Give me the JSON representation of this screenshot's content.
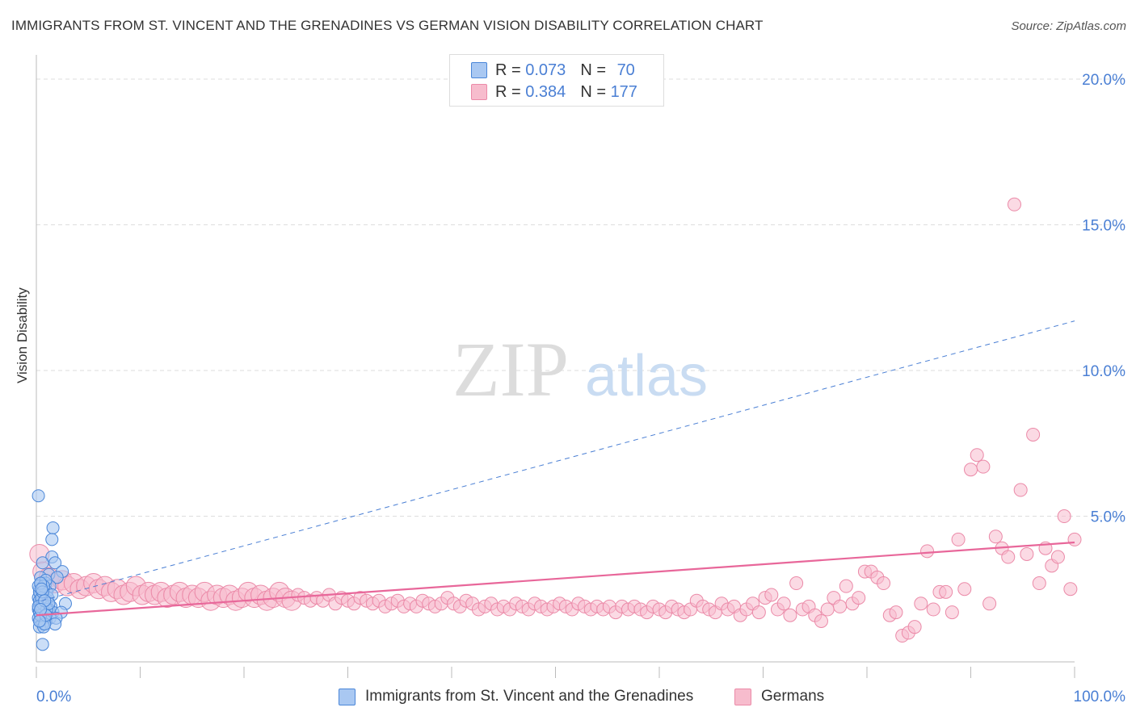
{
  "header": {
    "title": "IMMIGRANTS FROM ST. VINCENT AND THE GRENADINES VS GERMAN VISION DISABILITY CORRELATION CHART",
    "source": "Source: ZipAtlas.com"
  },
  "watermark": {
    "zip": "ZIP",
    "atlas": "atlas"
  },
  "legend_top": {
    "rows": [
      {
        "r_label": "R = ",
        "r_value": "0.073",
        "n_label": "N = ",
        "n_value": "70"
      },
      {
        "r_label": "R = ",
        "r_value": "0.384",
        "n_label": "N = ",
        "n_value": "177"
      }
    ]
  },
  "colors": {
    "blue_fill": "#a9c8f2",
    "blue_stroke": "#4a86d8",
    "blue_line": "#4a7fd4",
    "pink_fill": "#f7bccd",
    "pink_stroke": "#eb8aa8",
    "pink_line": "#e8679a",
    "tick_text": "#4a7fd4",
    "grid": "#dddddd"
  },
  "chart_data": {
    "type": "scatter",
    "title": "IMMIGRANTS FROM ST. VINCENT AND THE GRENADINES VS GERMAN VISION DISABILITY CORRELATION CHART",
    "xlabel": "",
    "ylabel": "Vision Disability",
    "xlim": [
      0,
      100
    ],
    "ylim": [
      0,
      20.5
    ],
    "x_tick_labels": [
      "0.0%",
      "100.0%"
    ],
    "y_ticks": [
      5,
      10,
      15,
      20
    ],
    "y_tick_labels": [
      "5.0%",
      "10.0%",
      "15.0%",
      "20.0%"
    ],
    "grid": true,
    "legend_position": "bottom",
    "series": [
      {
        "name": "Immigrants from St. Vincent and the Grenadines",
        "r": 0.073,
        "n": 70,
        "trend": {
          "x": [
            0.5,
            100
          ],
          "y": [
            2.1,
            11.7
          ],
          "style": "dashed"
        },
        "points": [
          [
            0.2,
            5.7
          ],
          [
            1.6,
            4.6
          ],
          [
            1.5,
            4.2
          ],
          [
            1.5,
            3.6
          ],
          [
            1.8,
            3.4
          ],
          [
            0.6,
            3.4
          ],
          [
            2.5,
            3.1
          ],
          [
            1.2,
            3.0
          ],
          [
            2.0,
            2.9
          ],
          [
            0.4,
            2.9
          ],
          [
            0.5,
            2.7
          ],
          [
            0.9,
            2.7
          ],
          [
            1.3,
            2.6
          ],
          [
            0.3,
            2.5
          ],
          [
            0.7,
            2.5
          ],
          [
            1.0,
            2.4
          ],
          [
            0.4,
            2.3
          ],
          [
            0.6,
            2.3
          ],
          [
            0.8,
            2.2
          ],
          [
            0.2,
            2.2
          ],
          [
            0.5,
            2.1
          ],
          [
            1.1,
            2.1
          ],
          [
            0.3,
            2.0
          ],
          [
            0.7,
            2.0
          ],
          [
            2.8,
            2.0
          ],
          [
            0.4,
            1.9
          ],
          [
            0.9,
            1.9
          ],
          [
            1.4,
            1.9
          ],
          [
            0.2,
            1.8
          ],
          [
            0.6,
            1.8
          ],
          [
            1.2,
            1.8
          ],
          [
            0.3,
            1.7
          ],
          [
            0.8,
            1.7
          ],
          [
            1.6,
            1.7
          ],
          [
            2.4,
            1.7
          ],
          [
            0.5,
            1.6
          ],
          [
            1.0,
            1.6
          ],
          [
            0.2,
            1.5
          ],
          [
            0.7,
            1.5
          ],
          [
            1.3,
            1.5
          ],
          [
            1.9,
            1.5
          ],
          [
            0.4,
            1.4
          ],
          [
            0.9,
            1.4
          ],
          [
            0.6,
            1.3
          ],
          [
            1.8,
            1.3
          ],
          [
            0.3,
            1.2
          ],
          [
            0.7,
            1.2
          ],
          [
            0.6,
            0.6
          ],
          [
            0.3,
            2.4
          ],
          [
            0.5,
            1.9
          ],
          [
            0.9,
            2.8
          ],
          [
            1.1,
            2.2
          ],
          [
            0.2,
            2.6
          ],
          [
            0.4,
            1.6
          ],
          [
            1.5,
            2.3
          ],
          [
            0.8,
            1.3
          ],
          [
            0.3,
            2.1
          ],
          [
            0.6,
            2.0
          ],
          [
            1.0,
            1.8
          ],
          [
            0.5,
            2.2
          ],
          [
            0.7,
            2.6
          ],
          [
            0.2,
            1.9
          ],
          [
            0.4,
            2.7
          ],
          [
            1.2,
            2.0
          ],
          [
            0.9,
            1.6
          ],
          [
            0.3,
            1.4
          ],
          [
            0.6,
            2.4
          ],
          [
            0.8,
            2.1
          ],
          [
            0.4,
            1.8
          ],
          [
            0.5,
            2.5
          ]
        ]
      },
      {
        "name": "Germans",
        "r": 0.384,
        "n": 177,
        "trend": {
          "x": [
            0,
            100
          ],
          "y": [
            1.6,
            4.1
          ],
          "style": "solid"
        },
        "points": [
          [
            0.3,
            3.7
          ],
          [
            0.6,
            3.1
          ],
          [
            1.2,
            2.9
          ],
          [
            1.8,
            2.7
          ],
          [
            2.5,
            2.8
          ],
          [
            3.0,
            2.6
          ],
          [
            3.6,
            2.7
          ],
          [
            4.2,
            2.5
          ],
          [
            4.8,
            2.6
          ],
          [
            5.5,
            2.7
          ],
          [
            6.0,
            2.5
          ],
          [
            6.6,
            2.6
          ],
          [
            7.2,
            2.4
          ],
          [
            7.8,
            2.5
          ],
          [
            8.4,
            2.3
          ],
          [
            9.0,
            2.4
          ],
          [
            9.6,
            2.6
          ],
          [
            10.2,
            2.3
          ],
          [
            10.8,
            2.4
          ],
          [
            11.4,
            2.3
          ],
          [
            12.0,
            2.4
          ],
          [
            12.6,
            2.2
          ],
          [
            13.2,
            2.3
          ],
          [
            13.8,
            2.4
          ],
          [
            14.4,
            2.2
          ],
          [
            15.0,
            2.3
          ],
          [
            15.6,
            2.2
          ],
          [
            16.2,
            2.4
          ],
          [
            16.8,
            2.1
          ],
          [
            17.4,
            2.3
          ],
          [
            18.0,
            2.2
          ],
          [
            18.6,
            2.3
          ],
          [
            19.2,
            2.1
          ],
          [
            19.8,
            2.2
          ],
          [
            20.4,
            2.4
          ],
          [
            21.0,
            2.2
          ],
          [
            21.6,
            2.3
          ],
          [
            22.2,
            2.1
          ],
          [
            22.8,
            2.2
          ],
          [
            23.4,
            2.4
          ],
          [
            24.0,
            2.2
          ],
          [
            24.6,
            2.1
          ],
          [
            25.2,
            2.3
          ],
          [
            25.8,
            2.2
          ],
          [
            26.4,
            2.1
          ],
          [
            27.0,
            2.2
          ],
          [
            27.6,
            2.1
          ],
          [
            28.2,
            2.3
          ],
          [
            28.8,
            2.0
          ],
          [
            29.4,
            2.2
          ],
          [
            30.0,
            2.1
          ],
          [
            30.6,
            2.0
          ],
          [
            31.2,
            2.2
          ],
          [
            31.8,
            2.1
          ],
          [
            32.4,
            2.0
          ],
          [
            33.0,
            2.1
          ],
          [
            33.6,
            1.9
          ],
          [
            34.2,
            2.0
          ],
          [
            34.8,
            2.1
          ],
          [
            35.4,
            1.9
          ],
          [
            36.0,
            2.0
          ],
          [
            36.6,
            1.9
          ],
          [
            37.2,
            2.1
          ],
          [
            37.8,
            2.0
          ],
          [
            38.4,
            1.9
          ],
          [
            39.0,
            2.0
          ],
          [
            39.6,
            2.2
          ],
          [
            40.2,
            2.0
          ],
          [
            40.8,
            1.9
          ],
          [
            41.4,
            2.1
          ],
          [
            42.0,
            2.0
          ],
          [
            42.6,
            1.8
          ],
          [
            43.2,
            1.9
          ],
          [
            43.8,
            2.0
          ],
          [
            44.4,
            1.8
          ],
          [
            45.0,
            1.9
          ],
          [
            45.6,
            1.8
          ],
          [
            46.2,
            2.0
          ],
          [
            46.8,
            1.9
          ],
          [
            47.4,
            1.8
          ],
          [
            48.0,
            2.0
          ],
          [
            48.6,
            1.9
          ],
          [
            49.2,
            1.8
          ],
          [
            49.8,
            1.9
          ],
          [
            50.4,
            2.0
          ],
          [
            51.0,
            1.9
          ],
          [
            51.6,
            1.8
          ],
          [
            52.2,
            2.0
          ],
          [
            52.8,
            1.9
          ],
          [
            53.4,
            1.8
          ],
          [
            54.0,
            1.9
          ],
          [
            54.6,
            1.8
          ],
          [
            55.2,
            1.9
          ],
          [
            55.8,
            1.7
          ],
          [
            56.4,
            1.9
          ],
          [
            57.0,
            1.8
          ],
          [
            57.6,
            1.9
          ],
          [
            58.2,
            1.8
          ],
          [
            58.8,
            1.7
          ],
          [
            59.4,
            1.9
          ],
          [
            60.0,
            1.8
          ],
          [
            60.6,
            1.7
          ],
          [
            61.2,
            1.9
          ],
          [
            61.8,
            1.8
          ],
          [
            62.4,
            1.7
          ],
          [
            63.0,
            1.8
          ],
          [
            63.6,
            2.1
          ],
          [
            64.2,
            1.9
          ],
          [
            64.8,
            1.8
          ],
          [
            65.4,
            1.7
          ],
          [
            66.0,
            2.0
          ],
          [
            66.6,
            1.8
          ],
          [
            67.2,
            1.9
          ],
          [
            67.8,
            1.6
          ],
          [
            68.4,
            1.8
          ],
          [
            69.0,
            2.0
          ],
          [
            69.6,
            1.7
          ],
          [
            70.2,
            2.2
          ],
          [
            70.8,
            2.3
          ],
          [
            71.4,
            1.8
          ],
          [
            72.0,
            2.0
          ],
          [
            72.6,
            1.6
          ],
          [
            73.2,
            2.7
          ],
          [
            73.8,
            1.8
          ],
          [
            74.4,
            1.9
          ],
          [
            75.0,
            1.6
          ],
          [
            75.6,
            1.4
          ],
          [
            76.2,
            1.8
          ],
          [
            76.8,
            2.2
          ],
          [
            77.4,
            1.9
          ],
          [
            78.0,
            2.6
          ],
          [
            78.6,
            2.0
          ],
          [
            79.2,
            2.2
          ],
          [
            79.8,
            3.1
          ],
          [
            80.4,
            3.1
          ],
          [
            81.0,
            2.9
          ],
          [
            81.6,
            2.7
          ],
          [
            82.2,
            1.6
          ],
          [
            82.8,
            1.7
          ],
          [
            83.4,
            0.9
          ],
          [
            84.0,
            1.0
          ],
          [
            84.6,
            1.2
          ],
          [
            85.2,
            2.0
          ],
          [
            85.8,
            3.8
          ],
          [
            86.4,
            1.8
          ],
          [
            87.0,
            2.4
          ],
          [
            87.6,
            2.4
          ],
          [
            88.2,
            1.7
          ],
          [
            88.8,
            4.2
          ],
          [
            89.4,
            2.5
          ],
          [
            90.0,
            6.6
          ],
          [
            90.6,
            7.1
          ],
          [
            91.2,
            6.7
          ],
          [
            91.8,
            2.0
          ],
          [
            92.4,
            4.3
          ],
          [
            93.0,
            3.9
          ],
          [
            93.6,
            3.6
          ],
          [
            94.2,
            15.7
          ],
          [
            94.8,
            5.9
          ],
          [
            95.4,
            3.7
          ],
          [
            96.0,
            7.8
          ],
          [
            96.6,
            2.7
          ],
          [
            97.2,
            3.9
          ],
          [
            97.8,
            3.3
          ],
          [
            98.4,
            3.6
          ],
          [
            99.0,
            5.0
          ],
          [
            99.6,
            2.5
          ],
          [
            100.0,
            4.2
          ]
        ]
      }
    ]
  },
  "legend_bottom": {
    "items": [
      {
        "label": "Immigrants from St. Vincent and the Grenadines"
      },
      {
        "label": "Germans"
      }
    ]
  }
}
